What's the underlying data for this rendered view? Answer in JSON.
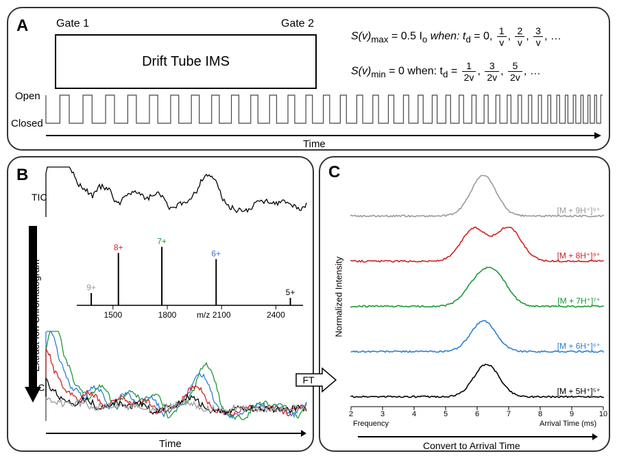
{
  "panelA": {
    "label": "A",
    "gate1": "Gate 1",
    "gate2": "Gate 2",
    "driftBox": "Drift Tube IMS",
    "open": "Open",
    "closed": "Closed",
    "timeAxis": "Time",
    "eq1_pre": "S(v)",
    "eq1_sub": "max",
    "eq1_mid": " = 0.5 I",
    "eq1_sub2": "o",
    "eq1_when": " when: t",
    "eq1_sub3": "d",
    "eq1_eq": " = 0, ",
    "eq1_f1n": "1",
    "eq1_f1d": "v",
    "eq1_f2n": "2",
    "eq1_f2d": "v",
    "eq1_f3n": "3",
    "eq1_f3d": "v",
    "eq_ell": ", …",
    "eq2_pre": "S(v)",
    "eq2_sub": "min",
    "eq2_mid": " = 0 when: t",
    "eq2_sub2": "d",
    "eq2_eq": " = ",
    "eq2_f1n": "1",
    "eq2_f1d": "2v",
    "eq2_f2n": "3",
    "eq2_f2d": "2v",
    "eq2_f3n": "5",
    "eq2_f3d": "2v",
    "chirp": {
      "pulses": 42,
      "color": "#444"
    }
  },
  "panelB": {
    "label": "B",
    "ticLabel": "TIC",
    "eicLabel": "EIC",
    "extractLabel": "Extract Ion Chromatogram",
    "timeAxis": "Time",
    "mzAxis": "m/z",
    "ticColor": "#000000",
    "ms": {
      "ticks": [
        1500,
        1800,
        2100,
        2400
      ],
      "peaks": [
        {
          "mz": 1380,
          "h": 20,
          "label": "9+",
          "color": "#999999"
        },
        {
          "mz": 1530,
          "h": 85,
          "label": "8+",
          "color": "#cc2222"
        },
        {
          "mz": 1770,
          "h": 95,
          "label": "7+",
          "color": "#1a9933"
        },
        {
          "mz": 2070,
          "h": 75,
          "label": "6+",
          "color": "#2a7dd6"
        },
        {
          "mz": 2480,
          "h": 12,
          "label": "5+",
          "color": "#000000"
        }
      ]
    },
    "eicColors": [
      "#1a9933",
      "#2a7dd6",
      "#cc2222",
      "#000000",
      "#999999"
    ]
  },
  "ftArrow": {
    "label": "FT"
  },
  "panelC": {
    "label": "C",
    "yLabel": "Normalized Intensity",
    "freqLabel": "Frequency",
    "xLabel": "Arrival Time (ms)",
    "convertLabel": "Convert to Arrival Time",
    "ticks": [
      2,
      3,
      4,
      5,
      6,
      7,
      8,
      9,
      10
    ],
    "traces": [
      {
        "color": "#999999",
        "label": "[M + 9H⁺]⁹⁺",
        "peaks": [
          [
            6.2,
            1.0
          ]
        ]
      },
      {
        "color": "#cc2222",
        "label": "[M + 8H⁺]⁸⁺",
        "peaks": [
          [
            5.9,
            0.8
          ],
          [
            7.0,
            0.82
          ]
        ]
      },
      {
        "color": "#1a9933",
        "label": "[M + 7H⁺]⁷⁺",
        "peaks": [
          [
            6.0,
            0.55
          ],
          [
            6.6,
            0.7
          ]
        ]
      },
      {
        "color": "#2a7dd6",
        "label": "[M + 6H⁺]⁶⁺",
        "peaks": [
          [
            6.2,
            0.75
          ]
        ]
      },
      {
        "color": "#000000",
        "label": "[M + 5H⁺]⁵⁺",
        "peaks": [
          [
            6.3,
            0.8
          ]
        ]
      }
    ]
  }
}
